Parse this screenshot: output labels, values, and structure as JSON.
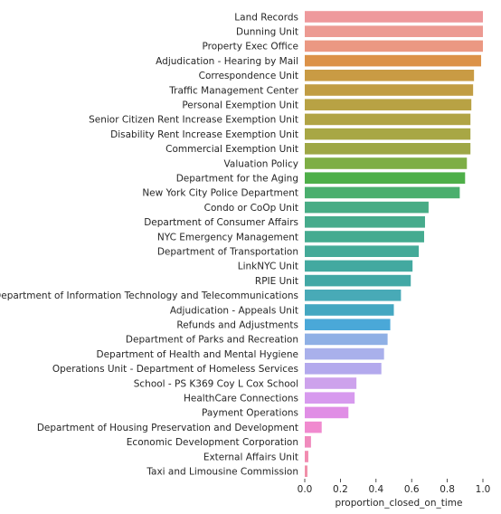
{
  "chart_data": {
    "type": "bar",
    "orientation": "horizontal",
    "xlabel": "proportion_closed_on_time",
    "ylabel": "",
    "xlim": [
      0,
      1.0
    ],
    "xticks": [
      0.0,
      0.2,
      0.4,
      0.6,
      0.8,
      1.0
    ],
    "xtick_labels": [
      "0.0",
      "0.2",
      "0.4",
      "0.6",
      "0.8",
      "1.0"
    ],
    "grid": false,
    "categories": [
      "Land Records",
      "Dunning Unit",
      "Property Exec Office",
      "Adjudication - Hearing by Mail",
      "Correspondence Unit",
      "Traffic Management Center",
      "Personal Exemption Unit",
      "Senior Citizen Rent Increase Exemption Unit",
      "Disability Rent Increase Exemption Unit",
      "Commercial Exemption Unit",
      "Valuation Policy",
      "Department for the Aging",
      "New York City Police Department",
      "Condo or CoOp Unit",
      "Department of Consumer Affairs",
      "NYC Emergency Management",
      "Department of Transportation",
      "LinkNYC Unit",
      "RPIE Unit",
      "Department of Information Technology and Telecommunications",
      "Adjudication - Appeals Unit",
      "Refunds and Adjustments",
      "Department of Parks and Recreation",
      "Department of Health and Mental Hygiene",
      "Operations Unit - Department of Homeless Services",
      "School - PS K369 Coy L Cox School",
      "HealthCare Connections",
      "Payment Operations",
      "Department of Housing Preservation and Development",
      "Economic Development Corporation",
      "External Affairs Unit",
      "Taxi and Limousine Commission"
    ],
    "values": [
      1.0,
      1.0,
      1.0,
      0.99,
      0.95,
      0.945,
      0.935,
      0.93,
      0.93,
      0.93,
      0.91,
      0.9,
      0.87,
      0.695,
      0.675,
      0.67,
      0.64,
      0.605,
      0.595,
      0.54,
      0.5,
      0.48,
      0.465,
      0.445,
      0.43,
      0.29,
      0.28,
      0.245,
      0.095,
      0.035,
      0.02,
      0.015
    ],
    "colors": [
      "#ee999c",
      "#ec9a92",
      "#eb9882",
      "#dc9248",
      "#c99b44",
      "#c19d44",
      "#b8a244",
      "#b1a445",
      "#a8a745",
      "#9ea745",
      "#7eae45",
      "#4eaf49",
      "#4baf6e",
      "#48ac85",
      "#46ab8c",
      "#45ab90",
      "#44aa98",
      "#43a9a0",
      "#42a8a5",
      "#48aab7",
      "#44a7c1",
      "#4aa8d8",
      "#8fb0e5",
      "#a9b0eb",
      "#b3a9ed",
      "#cda2ec",
      "#d79aee",
      "#e08ee5",
      "#f08acf",
      "#f08bbd",
      "#f28bb0",
      "#f08fa8"
    ]
  }
}
